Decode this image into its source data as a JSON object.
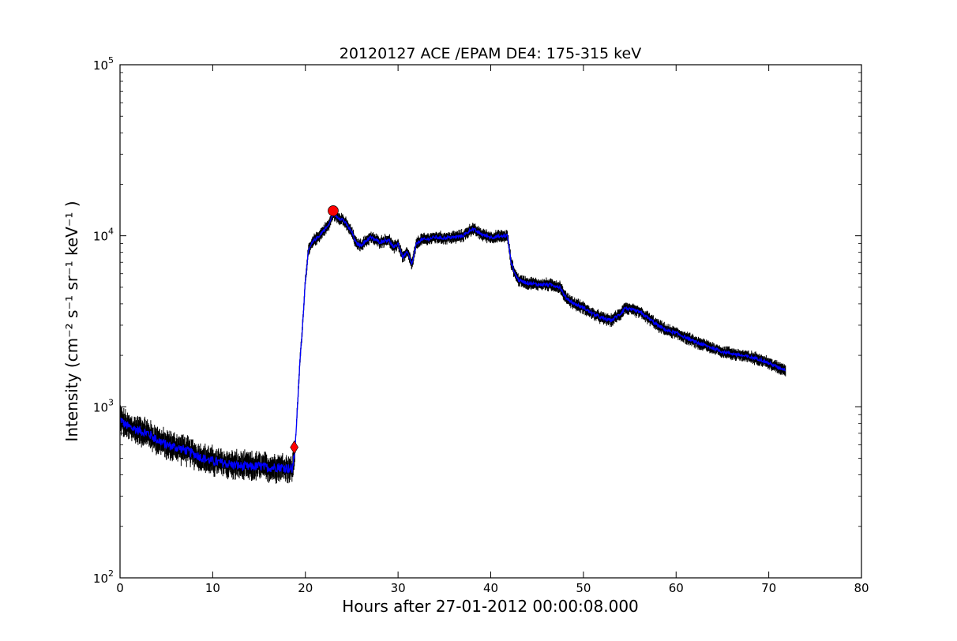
{
  "chart_data": {
    "type": "line",
    "title": "20120127 ACE /EPAM DE4: 175-315 keV",
    "xlabel": "Hours after 27-01-2012 00:00:08.000",
    "ylabel": "Intensity (cm⁻² s⁻¹ sr⁻¹ keV⁻¹ )",
    "xlim": [
      0,
      80
    ],
    "ylim": [
      100,
      100000
    ],
    "yscale": "log",
    "grid": false,
    "x_ticks": [
      "0",
      "10",
      "20",
      "30",
      "40",
      "50",
      "60",
      "70",
      "80"
    ],
    "y_ticks": [
      {
        "base": "10",
        "exp": "2"
      },
      {
        "base": "10",
        "exp": "3"
      },
      {
        "base": "10",
        "exp": "4"
      },
      {
        "base": "10",
        "exp": "5"
      }
    ],
    "series": [
      {
        "color": "#0000ff",
        "error_color": "#000000",
        "x": [
          0,
          0.5,
          1,
          2,
          3,
          4,
          5,
          6,
          7,
          8,
          9,
          10,
          11,
          12,
          13,
          14,
          15,
          16,
          17,
          18,
          18.6,
          18.9,
          19.1,
          19.4,
          19.7,
          20.0,
          20.3,
          20.6,
          21.0,
          21.5,
          22.0,
          22.5,
          23.0,
          23.5,
          24.0,
          24.5,
          25.0,
          25.5,
          26.0,
          27.0,
          28.0,
          29.0,
          29.5,
          30.0,
          30.5,
          31.0,
          31.5,
          32.0,
          32.5,
          33.0,
          34.0,
          35.0,
          36.0,
          37.0,
          38.0,
          39.0,
          40.0,
          41.0,
          41.8,
          42.2,
          42.6,
          43.0,
          44.0,
          45.0,
          46.0,
          47.0,
          47.5,
          48.0,
          48.5,
          49.0,
          50.0,
          51.0,
          52.0,
          53.0,
          54.0,
          54.5,
          55.0,
          56.0,
          57.0,
          58.0,
          59.0,
          60.0,
          61.0,
          62.0,
          63.0,
          64.0,
          65.0,
          66.0,
          67.0,
          68.0,
          69.0,
          70.0,
          71.0,
          71.8
        ],
        "y": [
          850,
          790,
          760,
          730,
          700,
          640,
          600,
          580,
          560,
          530,
          500,
          480,
          470,
          460,
          450,
          445,
          450,
          440,
          445,
          440,
          430,
          580,
          900,
          1800,
          3000,
          5500,
          8000,
          8800,
          9500,
          10000,
          10800,
          11500,
          13500,
          12800,
          12500,
          11500,
          10500,
          9000,
          8800,
          9800,
          9200,
          9500,
          8500,
          9000,
          7500,
          8000,
          6800,
          9000,
          9500,
          9500,
          9800,
          9700,
          9800,
          10000,
          11000,
          10200,
          9800,
          9900,
          10000,
          7000,
          6000,
          5500,
          5300,
          5200,
          5200,
          5100,
          5000,
          4400,
          4200,
          4000,
          3800,
          3500,
          3300,
          3200,
          3500,
          3800,
          3700,
          3600,
          3300,
          3000,
          2800,
          2700,
          2550,
          2400,
          2300,
          2200,
          2100,
          2050,
          2000,
          1950,
          1900,
          1800,
          1700,
          1650
        ]
      }
    ],
    "markers": [
      {
        "shape": "diamond",
        "x": 18.8,
        "y": 580,
        "color": "#ff0000"
      },
      {
        "shape": "circle",
        "x": 23.0,
        "y": 14000,
        "color": "#ff0000"
      }
    ]
  }
}
